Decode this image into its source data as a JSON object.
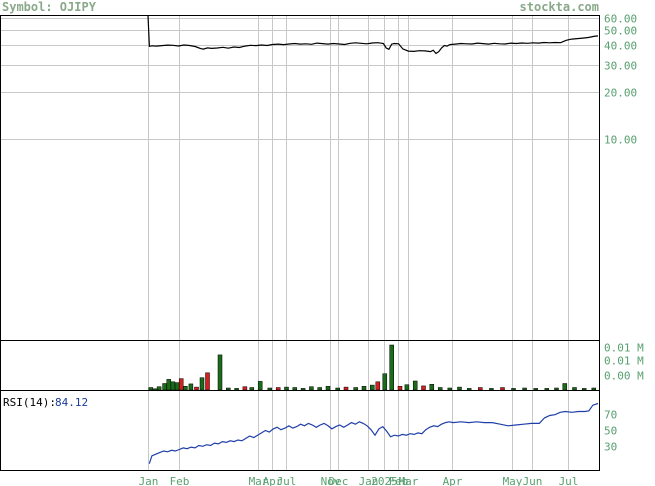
{
  "header": {
    "symbol_label": "Symbol: OJIPY",
    "site": "stockta.com"
  },
  "colors": {
    "price_line": "#000000",
    "vol_up": "#1a6b1a",
    "vol_down": "#d42020",
    "rsi_line": "#1f3fa8",
    "grid": "#c8c8c8",
    "text": "#58a070"
  },
  "chart_data": [
    {
      "type": "line",
      "name": "price",
      "scale": "log",
      "y_ticks": [
        {
          "label": "60.00",
          "value": 60
        },
        {
          "label": "50.00",
          "value": 50
        },
        {
          "label": "40.00",
          "value": 40
        },
        {
          "label": "30.00",
          "value": 30
        },
        {
          "label": "20.00",
          "value": 20
        },
        {
          "label": "10.00",
          "value": 10
        }
      ],
      "ylim": [
        0.5,
        62
      ],
      "xlim": [
        0,
        325
      ],
      "grid": true,
      "values": [
        [
          0,
          62
        ],
        [
          1,
          39.5
        ],
        [
          3,
          39.8
        ],
        [
          6,
          39.6
        ],
        [
          10,
          39.9
        ],
        [
          14,
          40.2
        ],
        [
          18,
          40.1
        ],
        [
          22,
          39.7
        ],
        [
          26,
          40.3
        ],
        [
          30,
          40.0
        ],
        [
          34,
          39.4
        ],
        [
          36,
          38.8
        ],
        [
          38,
          38.2
        ],
        [
          40,
          37.9
        ],
        [
          43,
          38.6
        ],
        [
          46,
          38.3
        ],
        [
          50,
          38.5
        ],
        [
          54,
          38.9
        ],
        [
          58,
          38.4
        ],
        [
          62,
          39.1
        ],
        [
          66,
          38.8
        ],
        [
          70,
          39.6
        ],
        [
          74,
          40.1
        ],
        [
          78,
          39.9
        ],
        [
          82,
          40.3
        ],
        [
          86,
          40.0
        ],
        [
          90,
          40.6
        ],
        [
          94,
          40.8
        ],
        [
          98,
          40.5
        ],
        [
          102,
          40.9
        ],
        [
          106,
          41.2
        ],
        [
          110,
          40.8
        ],
        [
          114,
          41.0
        ],
        [
          118,
          40.7
        ],
        [
          122,
          41.4
        ],
        [
          126,
          41.1
        ],
        [
          130,
          40.8
        ],
        [
          134,
          41.2
        ],
        [
          138,
          40.9
        ],
        [
          142,
          40.6
        ],
        [
          146,
          41.3
        ],
        [
          150,
          41.6
        ],
        [
          154,
          41.3
        ],
        [
          158,
          41.0
        ],
        [
          162,
          41.5
        ],
        [
          166,
          41.7
        ],
        [
          170,
          41.2
        ],
        [
          172,
          38.5
        ],
        [
          174,
          37.8
        ],
        [
          176,
          40.8
        ],
        [
          178,
          41.2
        ],
        [
          181,
          41.0
        ],
        [
          184,
          38.0
        ],
        [
          188,
          36.8
        ],
        [
          192,
          36.6
        ],
        [
          196,
          37.0
        ],
        [
          200,
          36.9
        ],
        [
          204,
          36.5
        ],
        [
          206,
          37.3
        ],
        [
          208,
          35.5
        ],
        [
          210,
          36.5
        ],
        [
          212,
          38.5
        ],
        [
          214,
          40.0
        ],
        [
          216,
          39.6
        ],
        [
          218,
          40.5
        ],
        [
          222,
          40.8
        ],
        [
          226,
          41.2
        ],
        [
          230,
          41.0
        ],
        [
          234,
          40.9
        ],
        [
          238,
          41.4
        ],
        [
          242,
          41.1
        ],
        [
          246,
          40.8
        ],
        [
          250,
          41.3
        ],
        [
          254,
          41.0
        ],
        [
          258,
          40.9
        ],
        [
          262,
          41.4
        ],
        [
          266,
          41.2
        ],
        [
          270,
          41.5
        ],
        [
          274,
          41.3
        ],
        [
          278,
          41.6
        ],
        [
          282,
          41.4
        ],
        [
          286,
          41.8
        ],
        [
          290,
          41.6
        ],
        [
          294,
          41.8
        ],
        [
          298,
          41.7
        ],
        [
          302,
          43.2
        ],
        [
          306,
          44.0
        ],
        [
          310,
          44.3
        ],
        [
          314,
          44.6
        ],
        [
          318,
          45.0
        ],
        [
          322,
          45.8
        ],
        [
          325,
          46.1
        ]
      ]
    },
    {
      "type": "bar",
      "name": "volume",
      "y_ticks": [
        {
          "label": "0.01 M",
          "value": 0.0104
        },
        {
          "label": "0.01 M",
          "value": 0.0072
        },
        {
          "label": "0.00 M",
          "value": 0.0035
        }
      ],
      "ylim": [
        0,
        0.0115
      ],
      "bars": [
        {
          "x": 2,
          "value": 0.0006,
          "dir": "up"
        },
        {
          "x": 5,
          "value": 0.0003,
          "dir": "up"
        },
        {
          "x": 8,
          "value": 0.0008,
          "dir": "up"
        },
        {
          "x": 12,
          "value": 0.0016,
          "dir": "up"
        },
        {
          "x": 15,
          "value": 0.0026,
          "dir": "up"
        },
        {
          "x": 18,
          "value": 0.002,
          "dir": "up"
        },
        {
          "x": 21,
          "value": 0.0018,
          "dir": "up"
        },
        {
          "x": 24,
          "value": 0.0028,
          "dir": "down"
        },
        {
          "x": 27,
          "value": 0.0009,
          "dir": "up"
        },
        {
          "x": 31,
          "value": 0.0015,
          "dir": "up"
        },
        {
          "x": 35,
          "value": 0.0007,
          "dir": "down"
        },
        {
          "x": 39,
          "value": 0.003,
          "dir": "up"
        },
        {
          "x": 43,
          "value": 0.0042,
          "dir": "down"
        },
        {
          "x": 52,
          "value": 0.0086,
          "dir": "up"
        },
        {
          "x": 58,
          "value": 0.0005,
          "dir": "up"
        },
        {
          "x": 64,
          "value": 0.0004,
          "dir": "up"
        },
        {
          "x": 70,
          "value": 0.0008,
          "dir": "down"
        },
        {
          "x": 75,
          "value": 0.0006,
          "dir": "up"
        },
        {
          "x": 81,
          "value": 0.0021,
          "dir": "up"
        },
        {
          "x": 88,
          "value": 0.0005,
          "dir": "up"
        },
        {
          "x": 94,
          "value": 0.0006,
          "dir": "down"
        },
        {
          "x": 100,
          "value": 0.0007,
          "dir": "up"
        },
        {
          "x": 106,
          "value": 0.0006,
          "dir": "up"
        },
        {
          "x": 112,
          "value": 0.0004,
          "dir": "up"
        },
        {
          "x": 118,
          "value": 0.0008,
          "dir": "up"
        },
        {
          "x": 124,
          "value": 0.0006,
          "dir": "up"
        },
        {
          "x": 130,
          "value": 0.0009,
          "dir": "up"
        },
        {
          "x": 137,
          "value": 0.0005,
          "dir": "up"
        },
        {
          "x": 143,
          "value": 0.0007,
          "dir": "down"
        },
        {
          "x": 150,
          "value": 0.0006,
          "dir": "up"
        },
        {
          "x": 156,
          "value": 0.0009,
          "dir": "up"
        },
        {
          "x": 162,
          "value": 0.0012,
          "dir": "up"
        },
        {
          "x": 166,
          "value": 0.002,
          "dir": "down"
        },
        {
          "x": 171,
          "value": 0.004,
          "dir": "up"
        },
        {
          "x": 176,
          "value": 0.011,
          "dir": "up"
        },
        {
          "x": 182,
          "value": 0.0009,
          "dir": "down"
        },
        {
          "x": 187,
          "value": 0.0013,
          "dir": "up"
        },
        {
          "x": 193,
          "value": 0.0022,
          "dir": "up"
        },
        {
          "x": 199,
          "value": 0.001,
          "dir": "down"
        },
        {
          "x": 205,
          "value": 0.0014,
          "dir": "up"
        },
        {
          "x": 211,
          "value": 0.0006,
          "dir": "up"
        },
        {
          "x": 218,
          "value": 0.0005,
          "dir": "up"
        },
        {
          "x": 225,
          "value": 0.0007,
          "dir": "up"
        },
        {
          "x": 232,
          "value": 0.0004,
          "dir": "up"
        },
        {
          "x": 240,
          "value": 0.0006,
          "dir": "down"
        },
        {
          "x": 248,
          "value": 0.0004,
          "dir": "up"
        },
        {
          "x": 256,
          "value": 0.0006,
          "dir": "down"
        },
        {
          "x": 264,
          "value": 0.0004,
          "dir": "up"
        },
        {
          "x": 272,
          "value": 0.0005,
          "dir": "up"
        },
        {
          "x": 280,
          "value": 0.0004,
          "dir": "up"
        },
        {
          "x": 288,
          "value": 0.0004,
          "dir": "up"
        },
        {
          "x": 295,
          "value": 0.0005,
          "dir": "up"
        },
        {
          "x": 301,
          "value": 0.0016,
          "dir": "up"
        },
        {
          "x": 308,
          "value": 0.0006,
          "dir": "up"
        },
        {
          "x": 315,
          "value": 0.0004,
          "dir": "up"
        },
        {
          "x": 322,
          "value": 0.0005,
          "dir": "up"
        }
      ]
    },
    {
      "type": "line",
      "name": "rsi",
      "label": "RSI(14):",
      "current": "84.12",
      "y_ticks": [
        {
          "label": "70",
          "value": 70
        },
        {
          "label": "50",
          "value": 50
        },
        {
          "label": "30",
          "value": 30
        }
      ],
      "ylim": [
        0,
        100
      ],
      "values": [
        [
          1,
          8
        ],
        [
          3,
          18
        ],
        [
          6,
          20
        ],
        [
          9,
          22
        ],
        [
          12,
          24
        ],
        [
          15,
          23
        ],
        [
          18,
          25
        ],
        [
          21,
          24
        ],
        [
          24,
          26
        ],
        [
          27,
          28
        ],
        [
          30,
          27
        ],
        [
          33,
          29
        ],
        [
          36,
          28
        ],
        [
          39,
          31
        ],
        [
          42,
          30
        ],
        [
          45,
          32
        ],
        [
          48,
          31
        ],
        [
          51,
          34
        ],
        [
          54,
          33
        ],
        [
          57,
          36
        ],
        [
          60,
          35
        ],
        [
          63,
          37
        ],
        [
          66,
          36
        ],
        [
          69,
          38
        ],
        [
          72,
          37
        ],
        [
          75,
          40
        ],
        [
          78,
          43
        ],
        [
          81,
          41
        ],
        [
          84,
          44
        ],
        [
          87,
          47
        ],
        [
          90,
          50
        ],
        [
          93,
          48
        ],
        [
          96,
          52
        ],
        [
          99,
          54
        ],
        [
          102,
          51
        ],
        [
          105,
          53
        ],
        [
          108,
          56
        ],
        [
          111,
          53
        ],
        [
          114,
          55
        ],
        [
          117,
          58
        ],
        [
          120,
          56
        ],
        [
          123,
          59
        ],
        [
          126,
          57
        ],
        [
          129,
          54
        ],
        [
          132,
          57
        ],
        [
          135,
          59
        ],
        [
          138,
          56
        ],
        [
          141,
          52
        ],
        [
          144,
          55
        ],
        [
          147,
          57
        ],
        [
          150,
          54
        ],
        [
          153,
          57
        ],
        [
          156,
          60
        ],
        [
          159,
          58
        ],
        [
          162,
          61
        ],
        [
          165,
          59
        ],
        [
          168,
          56
        ],
        [
          171,
          51
        ],
        [
          174,
          44
        ],
        [
          177,
          52
        ],
        [
          180,
          55
        ],
        [
          183,
          49
        ],
        [
          186,
          42
        ],
        [
          189,
          44
        ],
        [
          192,
          43
        ],
        [
          195,
          45
        ],
        [
          198,
          44
        ],
        [
          201,
          46
        ],
        [
          204,
          45
        ],
        [
          207,
          47
        ],
        [
          210,
          46
        ],
        [
          213,
          51
        ],
        [
          216,
          54
        ],
        [
          219,
          56
        ],
        [
          222,
          55
        ],
        [
          225,
          58
        ],
        [
          228,
          60
        ],
        [
          231,
          61
        ],
        [
          234,
          60
        ],
        [
          240,
          61
        ],
        [
          246,
          60
        ],
        [
          252,
          61
        ],
        [
          258,
          60
        ],
        [
          264,
          60
        ],
        [
          270,
          58
        ],
        [
          276,
          56
        ],
        [
          282,
          57
        ],
        [
          288,
          58
        ],
        [
          294,
          59
        ],
        [
          300,
          59
        ],
        [
          304,
          66
        ],
        [
          308,
          69
        ],
        [
          312,
          70
        ],
        [
          316,
          73
        ],
        [
          320,
          74
        ],
        [
          325,
          73
        ],
        [
          330,
          74
        ],
        [
          335,
          74
        ],
        [
          338,
          75
        ],
        [
          341,
          82
        ],
        [
          345,
          84.12
        ]
      ]
    }
  ],
  "x_axis": {
    "labels": [
      {
        "label": "Jan",
        "x": 0
      },
      {
        "label": "Feb",
        "x": 31
      },
      {
        "label": "Mar",
        "x": 110
      },
      {
        "label": "Apr",
        "x": 124
      },
      {
        "label": "Jul",
        "x": 138
      },
      {
        "label": "Nov",
        "x": 182
      },
      {
        "label": "Dec",
        "x": 190
      },
      {
        "label": "Jan",
        "x": 220
      },
      {
        "label": "2025",
        "x": 236
      },
      {
        "label": "Feb",
        "x": 250
      },
      {
        "label": "Mar",
        "x": 260
      },
      {
        "label": "Apr",
        "x": 304
      },
      {
        "label": "May",
        "x": 364
      },
      {
        "label": "Jun",
        "x": 384
      },
      {
        "label": "Jul",
        "x": 420
      }
    ]
  }
}
